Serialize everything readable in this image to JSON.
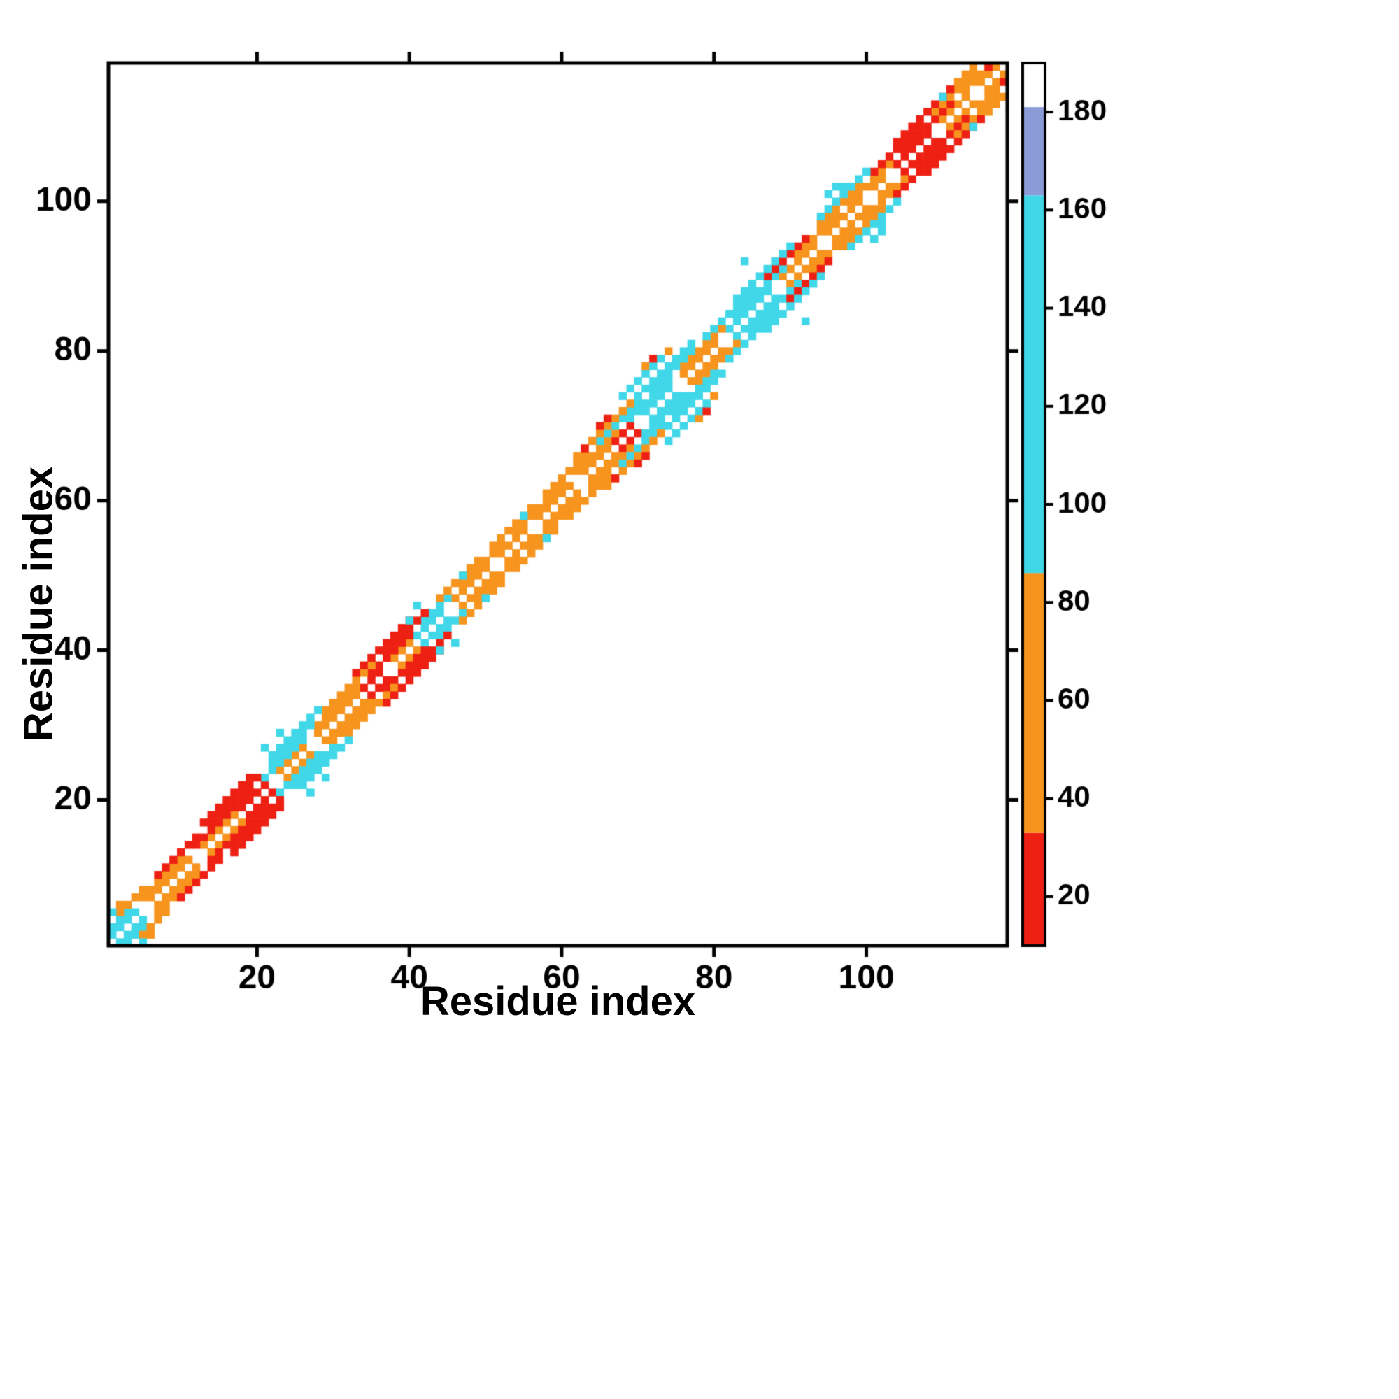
{
  "axes": {
    "xlabel": "Residue index",
    "ylabel": "Residue index",
    "xticks": [
      20,
      40,
      60,
      80,
      100
    ],
    "yticks": [
      20,
      40,
      60,
      80,
      100
    ],
    "domain_min": 1,
    "domain_max": 118
  },
  "colorbar": {
    "range_min": 10,
    "range_max": 190,
    "ticks": [
      20,
      40,
      60,
      80,
      100,
      120,
      140,
      160,
      180
    ],
    "segments": [
      [
        10,
        33,
        "#ee2013"
      ],
      [
        33,
        86,
        "#f7941e"
      ],
      [
        86,
        163,
        "#40d7e9"
      ],
      [
        163,
        181,
        "#8b9bd7"
      ],
      [
        181,
        190,
        "#ffffff"
      ]
    ]
  },
  "chart_data": {
    "type": "heatmap",
    "title": "",
    "xlabel": "Residue index",
    "ylabel": "Residue index",
    "n_residues": 118,
    "symmetric": true,
    "value_range": [
      10,
      190
    ],
    "diagonal_runs": {
      "1": [
        [
          1,
          4,
          110
        ],
        [
          6,
          11,
          60
        ],
        [
          13,
          17,
          60
        ],
        [
          18,
          21,
          20
        ],
        [
          23,
          26,
          60
        ],
        [
          28,
          33,
          60
        ],
        [
          34,
          36,
          20
        ],
        [
          38,
          40,
          60
        ],
        [
          41,
          44,
          110
        ],
        [
          46,
          50,
          60
        ],
        [
          52,
          55,
          60
        ],
        [
          57,
          61,
          60
        ],
        [
          63,
          66,
          60
        ],
        [
          67,
          69,
          20
        ],
        [
          71,
          74,
          110
        ],
        [
          76,
          80,
          60
        ],
        [
          82,
          87,
          110
        ],
        [
          89,
          93,
          60
        ],
        [
          95,
          99,
          60
        ],
        [
          101,
          102,
          60
        ],
        [
          104,
          108,
          20
        ],
        [
          110,
          113,
          60
        ],
        [
          115,
          117,
          60
        ]
      ],
      "2": [
        [
          1,
          3,
          110
        ],
        [
          5,
          10,
          60
        ],
        [
          12,
          19,
          20
        ],
        [
          21,
          26,
          110
        ],
        [
          28,
          33,
          60
        ],
        [
          35,
          40,
          20
        ],
        [
          42,
          45,
          110
        ],
        [
          47,
          52,
          60
        ],
        [
          54,
          60,
          60
        ],
        [
          62,
          67,
          60
        ],
        [
          69,
          74,
          110
        ],
        [
          76,
          81,
          60
        ],
        [
          83,
          89,
          110
        ],
        [
          91,
          96,
          60
        ],
        [
          98,
          103,
          60
        ],
        [
          105,
          111,
          20
        ],
        [
          113,
          116,
          60
        ]
      ],
      "3": [
        [
          2,
          5,
          60
        ],
        [
          7,
          12,
          20
        ],
        [
          14,
          20,
          20
        ],
        [
          22,
          27,
          110
        ],
        [
          29,
          35,
          60
        ],
        [
          37,
          42,
          20
        ],
        [
          44,
          49,
          60
        ],
        [
          51,
          56,
          60
        ],
        [
          58,
          63,
          60
        ],
        [
          65,
          70,
          110
        ],
        [
          72,
          77,
          110
        ],
        [
          79,
          85,
          110
        ],
        [
          87,
          92,
          20
        ],
        [
          94,
          99,
          60
        ],
        [
          101,
          107,
          20
        ],
        [
          109,
          114,
          60
        ]
      ],
      "4": [
        [
          13,
          19,
          20
        ],
        [
          22,
          28,
          110
        ],
        [
          33,
          40,
          20
        ],
        [
          62,
          69,
          60
        ],
        [
          70,
          77,
          110
        ],
        [
          83,
          90,
          110
        ],
        [
          94,
          100,
          110
        ],
        [
          104,
          111,
          20
        ],
        [
          112,
          114,
          60
        ]
      ]
    },
    "extra_points": [
      [
        1,
        5,
        110
      ],
      [
        2,
        6,
        60
      ],
      [
        21,
        27,
        110
      ],
      [
        23,
        29,
        110
      ],
      [
        40,
        44,
        110
      ],
      [
        41,
        46,
        110
      ],
      [
        47,
        50,
        110
      ],
      [
        55,
        58,
        110
      ],
      [
        63,
        67,
        20
      ],
      [
        65,
        70,
        20
      ],
      [
        66,
        71,
        20
      ],
      [
        68,
        74,
        110
      ],
      [
        69,
        75,
        110
      ],
      [
        70,
        76,
        110
      ],
      [
        71,
        77,
        110
      ],
      [
        71,
        78,
        60
      ],
      [
        72,
        78,
        110
      ],
      [
        72,
        79,
        20
      ],
      [
        73,
        79,
        110
      ],
      [
        74,
        80,
        60
      ],
      [
        84,
        92,
        110
      ],
      [
        95,
        101,
        110
      ],
      [
        96,
        102,
        110
      ],
      [
        97,
        102,
        110
      ],
      [
        110,
        114,
        110
      ],
      [
        116,
        118,
        20
      ]
    ]
  }
}
